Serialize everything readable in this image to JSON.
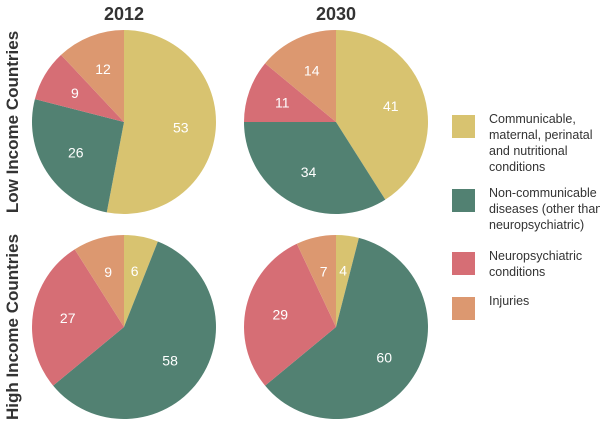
{
  "chart_data": {
    "type": "pie",
    "column_titles": [
      "2012",
      "2030"
    ],
    "row_titles": [
      "Low Income Countries",
      "High Income Countries"
    ],
    "categories": [
      {
        "key": "communicable",
        "lines": [
          "Communicable,",
          "maternal, perinatal",
          "and nutritional",
          "conditions"
        ],
        "color": "#d8c370"
      },
      {
        "key": "noncommunicable",
        "lines": [
          "Non-communicable",
          "diseases (other than",
          "neuropsychiatric)"
        ],
        "color": "#528172"
      },
      {
        "key": "neuropsychiatric",
        "lines": [
          "Neuropsychiatric",
          "conditions"
        ],
        "color": "#d66e75"
      },
      {
        "key": "injuries",
        "lines": [
          "Injuries"
        ],
        "color": "#dc9870"
      }
    ],
    "pies": [
      {
        "row": "Low Income Countries",
        "year": "2012",
        "values": [
          53,
          26,
          9,
          12
        ]
      },
      {
        "row": "Low Income Countries",
        "year": "2030",
        "values": [
          41,
          34,
          11,
          14
        ]
      },
      {
        "row": "High Income Countries",
        "year": "2012",
        "values": [
          6,
          58,
          27,
          9
        ]
      },
      {
        "row": "High Income Countries",
        "year": "2030",
        "values": [
          4,
          60,
          29,
          7
        ]
      }
    ],
    "legend_position": "right"
  }
}
